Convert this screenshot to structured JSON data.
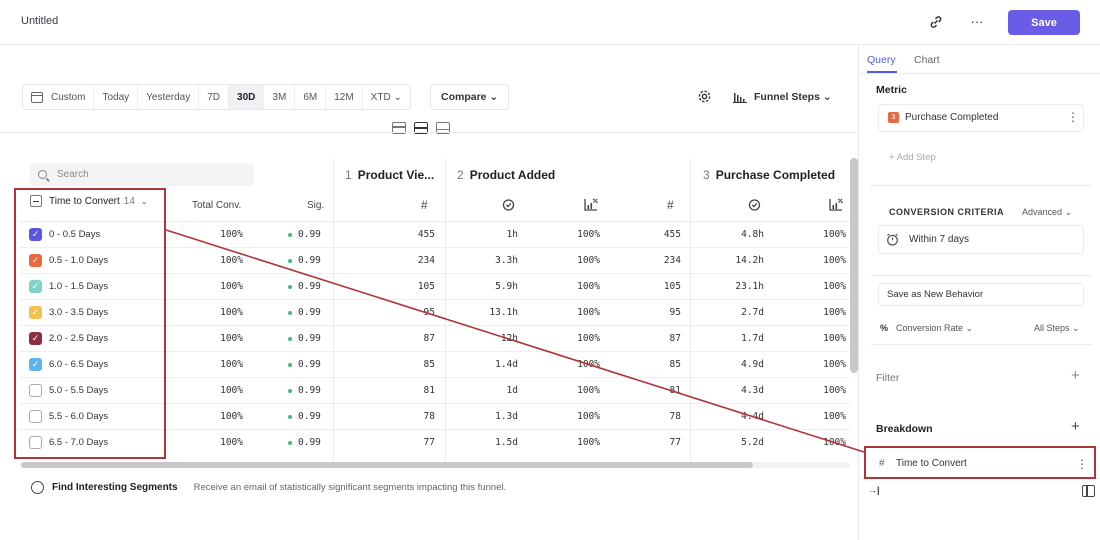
{
  "header": {
    "title": "Untitled",
    "save_label": "Save",
    "link_icon": "link-icon",
    "more_icon": "more-icon",
    "more_glyph": "···"
  },
  "toolbar": {
    "date_ranges": [
      {
        "label": "Custom",
        "active": false
      },
      {
        "label": "Today",
        "active": false
      },
      {
        "label": "Yesterday",
        "active": false
      },
      {
        "label": "7D",
        "active": false
      },
      {
        "label": "30D",
        "active": true
      },
      {
        "label": "3M",
        "active": false
      },
      {
        "label": "6M",
        "active": false
      },
      {
        "label": "12M",
        "active": false
      },
      {
        "label": "XTD ⌄",
        "active": false
      }
    ],
    "compare_label": "Compare ⌄",
    "funnel_steps_label": "Funnel Steps ⌄"
  },
  "table": {
    "search_placeholder": "Search",
    "breakdown_column": {
      "label": "Time to Convert",
      "count": "14",
      "chevron": "⌄"
    },
    "columns": {
      "total_conv": "Total Conv.",
      "sig": "Sig."
    },
    "steps": [
      {
        "num": "1",
        "name": "Product Vie..."
      },
      {
        "num": "2",
        "name": "Product Added"
      },
      {
        "num": "3",
        "name": "Purchase Completed"
      }
    ],
    "check_glyph": "✓",
    "rows": [
      {
        "label": "0 - 0.5 Days",
        "checked": true,
        "color": "#5b55e0",
        "total": "100%",
        "sig": "0.99",
        "s1": "455",
        "s2_time": "1h",
        "s2_pct": "100%",
        "s2_count": "455",
        "s3_time": "4.8h",
        "s3_pct": "100%"
      },
      {
        "label": "0.5 - 1.0 Days",
        "checked": true,
        "color": "#e8693f",
        "total": "100%",
        "sig": "0.99",
        "s1": "234",
        "s2_time": "3.3h",
        "s2_pct": "100%",
        "s2_count": "234",
        "s3_time": "14.2h",
        "s3_pct": "100%"
      },
      {
        "label": "1.0 - 1.5 Days",
        "checked": true,
        "color": "#7fd3c7",
        "total": "100%",
        "sig": "0.99",
        "s1": "105",
        "s2_time": "5.9h",
        "s2_pct": "100%",
        "s2_count": "105",
        "s3_time": "23.1h",
        "s3_pct": "100%"
      },
      {
        "label": "3.0 - 3.5 Days",
        "checked": true,
        "color": "#f2c14e",
        "total": "100%",
        "sig": "0.99",
        "s1": "95",
        "s2_time": "13.1h",
        "s2_pct": "100%",
        "s2_count": "95",
        "s3_time": "2.7d",
        "s3_pct": "100%"
      },
      {
        "label": "2.0 - 2.5 Days",
        "checked": true,
        "color": "#8c2e3f",
        "total": "100%",
        "sig": "0.99",
        "s1": "87",
        "s2_time": "12h",
        "s2_pct": "100%",
        "s2_count": "87",
        "s3_time": "1.7d",
        "s3_pct": "100%"
      },
      {
        "label": "6.0 - 6.5 Days",
        "checked": true,
        "color": "#5fb3e8",
        "total": "100%",
        "sig": "0.99",
        "s1": "85",
        "s2_time": "1.4d",
        "s2_pct": "100%",
        "s2_count": "85",
        "s3_time": "4.9d",
        "s3_pct": "100%"
      },
      {
        "label": "5.0 - 5.5 Days",
        "checked": false,
        "color": "",
        "total": "100%",
        "sig": "0.99",
        "s1": "81",
        "s2_time": "1d",
        "s2_pct": "100%",
        "s2_count": "81",
        "s3_time": "4.3d",
        "s3_pct": "100%"
      },
      {
        "label": "5.5 - 6.0 Days",
        "checked": false,
        "color": "",
        "total": "100%",
        "sig": "0.99",
        "s1": "78",
        "s2_time": "1.3d",
        "s2_pct": "100%",
        "s2_count": "78",
        "s3_time": "4.4d",
        "s3_pct": "100%"
      },
      {
        "label": "6.5 - 7.0 Days",
        "checked": false,
        "color": "",
        "total": "100%",
        "sig": "0.99",
        "s1": "77",
        "s2_time": "1.5d",
        "s2_pct": "100%",
        "s2_count": "77",
        "s3_time": "5.2d",
        "s3_pct": "100%"
      }
    ]
  },
  "footer": {
    "title": "Find Interesting Segments",
    "description": "Receive an email of statistically significant segments impacting this funnel."
  },
  "panel": {
    "tabs": [
      "Query",
      "Chart"
    ],
    "metric_title": "Metric",
    "metric_step": {
      "num": "3",
      "name": "Purchase Completed"
    },
    "add_step": "+ Add Step",
    "conversion_criteria": "CONVERSION CRITERIA",
    "advanced": "Advanced ⌄",
    "window": "Within 7 days",
    "save_behavior": "Save as New Behavior",
    "percent_glyph": "%",
    "conversion_rate": "Conversion Rate ⌄",
    "all_steps": "All Steps ⌄",
    "filter_title": "Filter",
    "breakdown_title": "Breakdown",
    "plus_glyph": "+",
    "breakdown_item": {
      "hash": "#",
      "label": "Time to Convert"
    },
    "collapse_glyph": "→|"
  },
  "accent_color": "#6b5ce7",
  "highlight_color": "#b0353a"
}
